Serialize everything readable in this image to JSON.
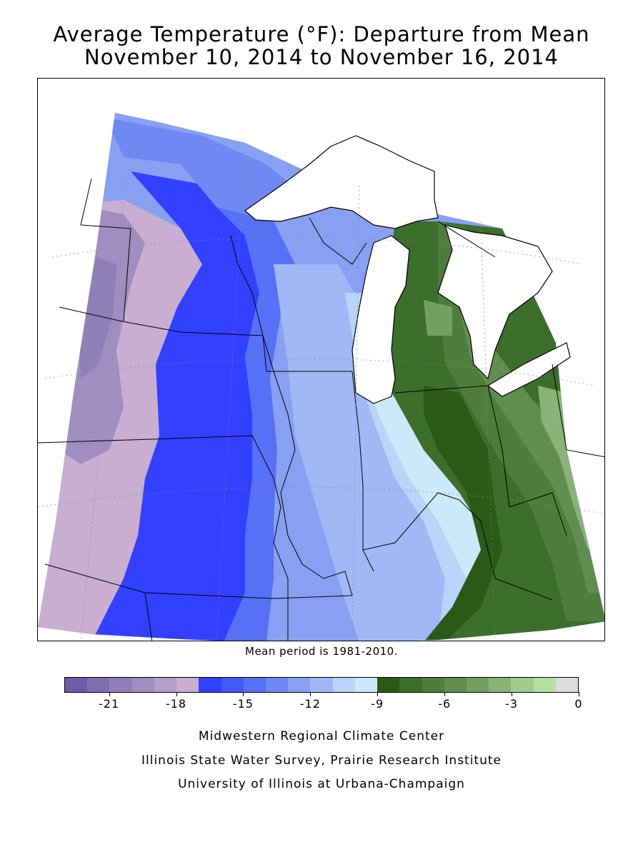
{
  "title": {
    "line1": "Average Temperature (°F): Departure from Mean",
    "line2": "November 10, 2014 to November 16, 2014"
  },
  "mean_note": "Mean period is 1981-2010.",
  "legend": {
    "colors": [
      "#6c5ca8",
      "#7d6fb0",
      "#8f80b8",
      "#a08ec0",
      "#b49fc8",
      "#c8aed0",
      "#3340ff",
      "#4458f8",
      "#5870f5",
      "#7088f2",
      "#88a0f2",
      "#a0b8f5",
      "#b8d4f8",
      "#cce8fb",
      "#2a5a18",
      "#3c6e2c",
      "#4e7e3e",
      "#608e50",
      "#72a060",
      "#88b278",
      "#9ccc90",
      "#b4e0a4",
      "#dcdcdc"
    ],
    "tick_labels": [
      "-21",
      "-18",
      "-15",
      "-12",
      "-9",
      "-6",
      "-3",
      "0"
    ]
  },
  "credits": {
    "line1": "Midwestern Regional Climate Center",
    "line2": "Illinois State Water Survey, Prairie Research Institute",
    "line3": "University of Illinois at Urbana-Champaign"
  }
}
